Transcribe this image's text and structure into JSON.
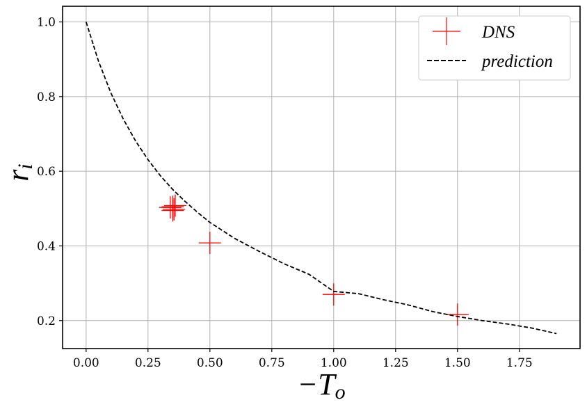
{
  "chart_data": {
    "type": "scatter",
    "xlabel": "−T",
    "xlabel_sub": "o",
    "ylabel": "r",
    "ylabel_sub": "i",
    "xlim": [
      -0.095,
      1.995
    ],
    "ylim": [
      0.125,
      1.042
    ],
    "xticks": [
      0.0,
      0.25,
      0.5,
      0.75,
      1.0,
      1.25,
      1.5,
      1.75
    ],
    "xtick_labels": [
      "0.00",
      "0.25",
      "0.50",
      "0.75",
      "1.00",
      "1.25",
      "1.50",
      "1.75"
    ],
    "yticks": [
      0.2,
      0.4,
      0.6,
      0.8,
      1.0
    ],
    "ytick_labels": [
      "0.2",
      "0.4",
      "0.6",
      "0.8",
      "1.0"
    ],
    "grid": true,
    "legend_position": "top-right",
    "series": [
      {
        "name": "DNS",
        "kind": "marker",
        "marker": "plus",
        "color": "#ff0000",
        "x": [
          0.34,
          0.35,
          0.35,
          0.36,
          0.355,
          0.5,
          1.0,
          1.5
        ],
        "y": [
          0.503,
          0.505,
          0.495,
          0.508,
          0.498,
          0.408,
          0.27,
          0.216
        ]
      },
      {
        "name": "prediction",
        "kind": "line",
        "linestyle": "dashed",
        "color": "#000000",
        "x": [
          0.0,
          0.05,
          0.1,
          0.15,
          0.2,
          0.25,
          0.3,
          0.35,
          0.4,
          0.45,
          0.5,
          0.6,
          0.7,
          0.8,
          0.9,
          1.0,
          1.1,
          1.2,
          1.3,
          1.4,
          1.5,
          1.6,
          1.7,
          1.8,
          1.9
        ],
        "y": [
          1.0,
          0.895,
          0.81,
          0.74,
          0.681,
          0.631,
          0.588,
          0.551,
          0.519,
          0.49,
          0.463,
          0.42,
          0.385,
          0.352,
          0.324,
          0.278,
          0.272,
          0.256,
          0.242,
          0.224,
          0.211,
          0.2,
          0.191,
          0.18,
          0.165
        ]
      }
    ]
  }
}
